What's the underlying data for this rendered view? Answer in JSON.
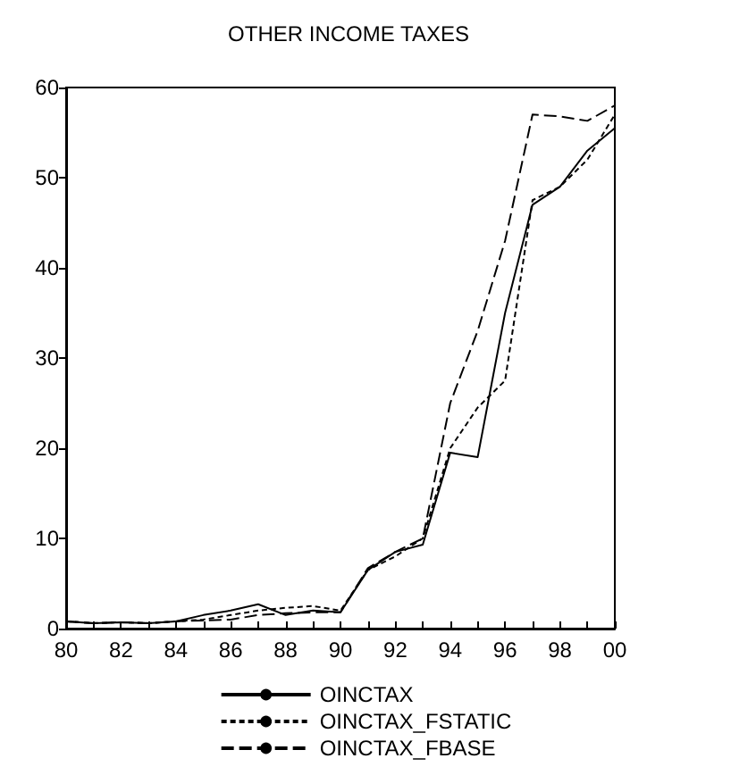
{
  "chart_data": {
    "type": "line",
    "title": "OTHER INCOME TAXES",
    "categories": [
      "80",
      null,
      "82",
      null,
      "84",
      null,
      "86",
      null,
      "88",
      null,
      "90",
      null,
      "92",
      null,
      "94",
      null,
      "96",
      null,
      "98",
      null,
      "00"
    ],
    "series": [
      {
        "name": "OINCTAX",
        "color": "#000000",
        "line_style": "solid",
        "values": [
          0.8,
          0.6,
          0.7,
          0.6,
          0.8,
          1.5,
          2.0,
          2.7,
          1.5,
          2.0,
          1.8,
          6.5,
          8.5,
          9.3,
          19.5,
          19.0,
          35,
          47,
          49,
          53,
          55.5
        ]
      },
      {
        "name": "OINCTAX_FSTATIC",
        "color": "#000000",
        "line_style": "dotted",
        "values": [
          0.8,
          0.6,
          0.7,
          0.6,
          0.8,
          1.0,
          1.5,
          2.0,
          2.3,
          2.5,
          2.0,
          6.5,
          8.0,
          10,
          20,
          24.5,
          27.5,
          47.5,
          49,
          52,
          57
        ]
      },
      {
        "name": "OINCTAX_FBASE",
        "color": "#000000",
        "line_style": "dashed",
        "values": [
          0.8,
          0.6,
          0.7,
          0.6,
          0.8,
          0.9,
          1.0,
          1.5,
          1.7,
          1.8,
          1.8,
          6.7,
          8.5,
          10,
          25,
          33,
          43,
          57,
          56.8,
          56.3,
          58
        ]
      }
    ],
    "ylim": [
      0,
      60
    ],
    "yticks": [
      0,
      10,
      20,
      30,
      40,
      50,
      60
    ],
    "grid": false,
    "legend": "bottom",
    "marker": "none"
  }
}
